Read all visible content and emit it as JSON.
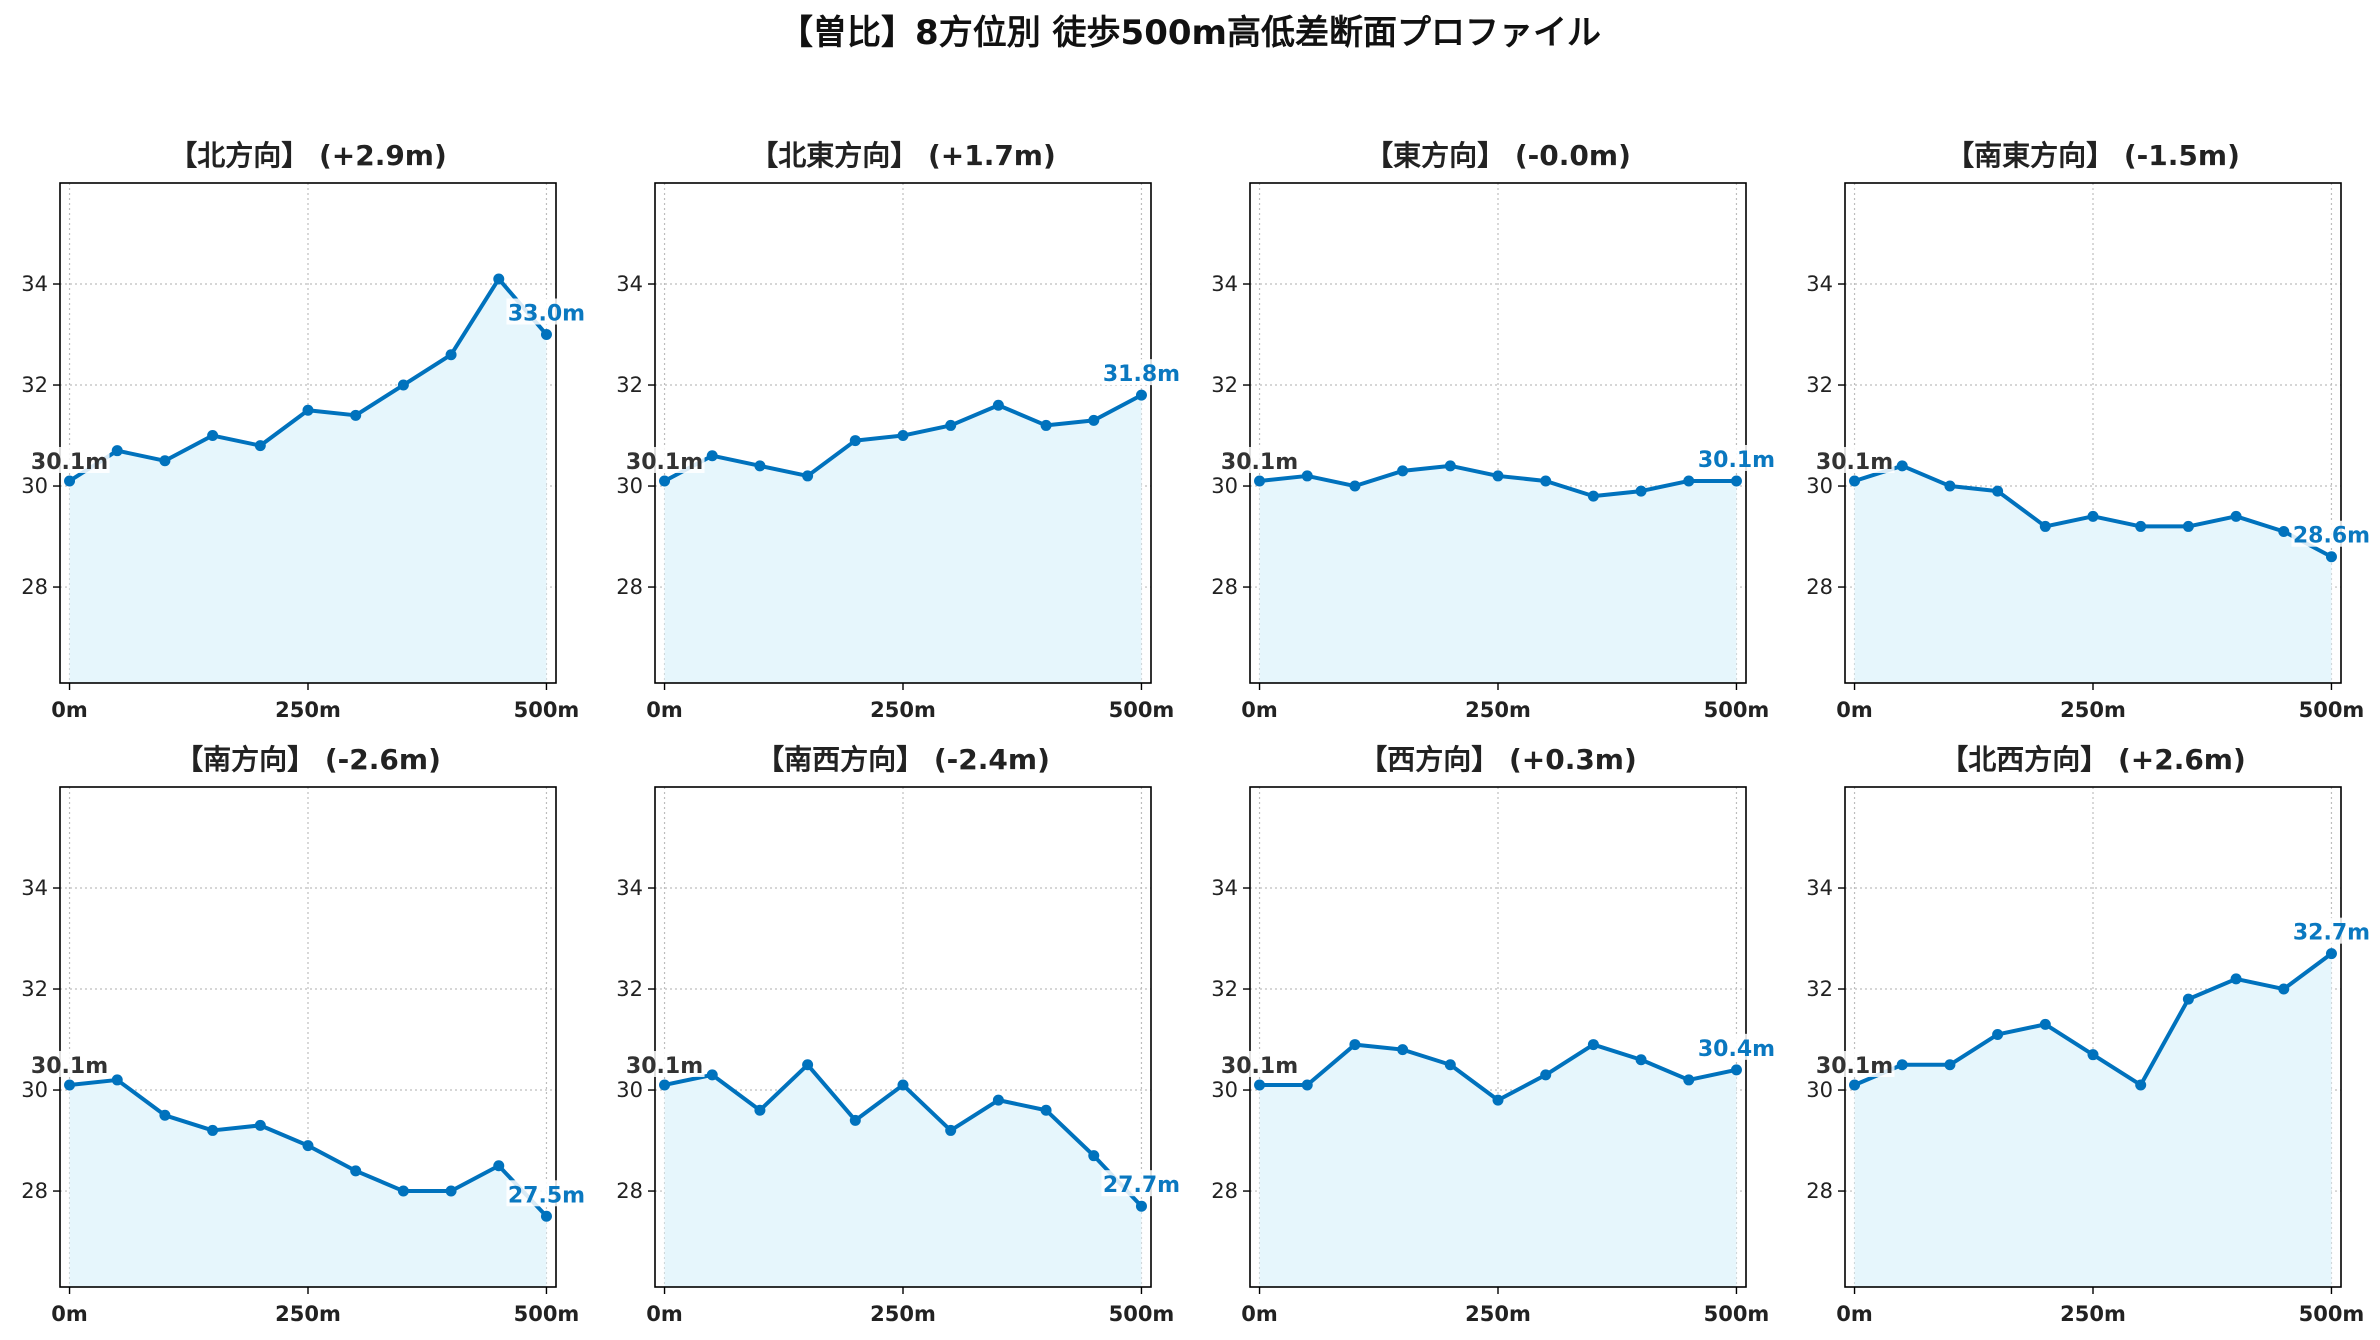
{
  "title": "【曽比】8方位別 徒歩500m高低差断面プロファイル",
  "colors": {
    "line": "#0072bd",
    "fill": "#e6f6fc",
    "start_label": "#333333",
    "end_label": "#0a78c0"
  },
  "chart_data": [
    {
      "type": "area",
      "title": "【北方向】 (+2.9m)",
      "x": [
        0,
        50,
        100,
        150,
        200,
        250,
        300,
        350,
        400,
        450,
        500
      ],
      "values": [
        30.1,
        30.7,
        30.5,
        31.0,
        30.8,
        31.5,
        31.4,
        32.0,
        32.6,
        34.1,
        33.0
      ],
      "xticks": [
        "0m",
        "250m",
        "500m"
      ],
      "yticks": [
        "28",
        "30",
        "32",
        "34"
      ],
      "ylim": [
        26.1,
        36.0
      ],
      "xlim": [
        -10,
        510
      ],
      "start_label": "30.1m",
      "end_label": "33.0m",
      "grid": true
    },
    {
      "type": "area",
      "title": "【北東方向】 (+1.7m)",
      "x": [
        0,
        50,
        100,
        150,
        200,
        250,
        300,
        350,
        400,
        450,
        500
      ],
      "values": [
        30.1,
        30.6,
        30.4,
        30.2,
        30.9,
        31.0,
        31.2,
        31.6,
        31.2,
        31.3,
        31.8
      ],
      "xticks": [
        "0m",
        "250m",
        "500m"
      ],
      "yticks": [
        "28",
        "30",
        "32",
        "34"
      ],
      "ylim": [
        26.1,
        36.0
      ],
      "xlim": [
        -10,
        510
      ],
      "start_label": "30.1m",
      "end_label": "31.8m",
      "grid": true
    },
    {
      "type": "area",
      "title": "【東方向】 (-0.0m)",
      "x": [
        0,
        50,
        100,
        150,
        200,
        250,
        300,
        350,
        400,
        450,
        500
      ],
      "values": [
        30.1,
        30.2,
        30.0,
        30.3,
        30.4,
        30.2,
        30.1,
        29.8,
        29.9,
        30.1,
        30.1
      ],
      "xticks": [
        "0m",
        "250m",
        "500m"
      ],
      "yticks": [
        "28",
        "30",
        "32",
        "34"
      ],
      "ylim": [
        26.1,
        36.0
      ],
      "xlim": [
        -10,
        510
      ],
      "start_label": "30.1m",
      "end_label": "30.1m",
      "grid": true
    },
    {
      "type": "area",
      "title": "【南東方向】 (-1.5m)",
      "x": [
        0,
        50,
        100,
        150,
        200,
        250,
        300,
        350,
        400,
        450,
        500
      ],
      "values": [
        30.1,
        30.4,
        30.0,
        29.9,
        29.2,
        29.4,
        29.2,
        29.2,
        29.4,
        29.1,
        28.6
      ],
      "xticks": [
        "0m",
        "250m",
        "500m"
      ],
      "yticks": [
        "28",
        "30",
        "32",
        "34"
      ],
      "ylim": [
        26.1,
        36.0
      ],
      "xlim": [
        -10,
        510
      ],
      "start_label": "30.1m",
      "end_label": "28.6m",
      "grid": true
    },
    {
      "type": "area",
      "title": "【南方向】 (-2.6m)",
      "x": [
        0,
        50,
        100,
        150,
        200,
        250,
        300,
        350,
        400,
        450,
        500
      ],
      "values": [
        30.1,
        30.2,
        29.5,
        29.2,
        29.3,
        28.9,
        28.4,
        28.0,
        28.0,
        28.5,
        27.5
      ],
      "xticks": [
        "0m",
        "250m",
        "500m"
      ],
      "yticks": [
        "28",
        "30",
        "32",
        "34"
      ],
      "ylim": [
        26.1,
        36.0
      ],
      "xlim": [
        -10,
        510
      ],
      "start_label": "30.1m",
      "end_label": "27.5m",
      "grid": true
    },
    {
      "type": "area",
      "title": "【南西方向】 (-2.4m)",
      "x": [
        0,
        50,
        100,
        150,
        200,
        250,
        300,
        350,
        400,
        450,
        500
      ],
      "values": [
        30.1,
        30.3,
        29.6,
        30.5,
        29.4,
        30.1,
        29.2,
        29.8,
        29.6,
        28.7,
        27.7
      ],
      "xticks": [
        "0m",
        "250m",
        "500m"
      ],
      "yticks": [
        "28",
        "30",
        "32",
        "34"
      ],
      "ylim": [
        26.1,
        36.0
      ],
      "xlim": [
        -10,
        510
      ],
      "start_label": "30.1m",
      "end_label": "27.7m",
      "grid": true
    },
    {
      "type": "area",
      "title": "【西方向】 (+0.3m)",
      "x": [
        0,
        50,
        100,
        150,
        200,
        250,
        300,
        350,
        400,
        450,
        500
      ],
      "values": [
        30.1,
        30.1,
        30.9,
        30.8,
        30.5,
        29.8,
        30.3,
        30.9,
        30.6,
        30.2,
        30.4
      ],
      "xticks": [
        "0m",
        "250m",
        "500m"
      ],
      "yticks": [
        "28",
        "30",
        "32",
        "34"
      ],
      "ylim": [
        26.1,
        36.0
      ],
      "xlim": [
        -10,
        510
      ],
      "start_label": "30.1m",
      "end_label": "30.4m",
      "grid": true
    },
    {
      "type": "area",
      "title": "【北西方向】 (+2.6m)",
      "x": [
        0,
        50,
        100,
        150,
        200,
        250,
        300,
        350,
        400,
        450,
        500
      ],
      "values": [
        30.1,
        30.5,
        30.5,
        31.1,
        31.3,
        30.7,
        30.1,
        31.8,
        32.2,
        32.0,
        32.7
      ],
      "xticks": [
        "0m",
        "250m",
        "500m"
      ],
      "yticks": [
        "28",
        "30",
        "32",
        "34"
      ],
      "ylim": [
        26.1,
        36.0
      ],
      "xlim": [
        -10,
        510
      ],
      "start_label": "30.1m",
      "end_label": "32.7m",
      "grid": true
    }
  ]
}
